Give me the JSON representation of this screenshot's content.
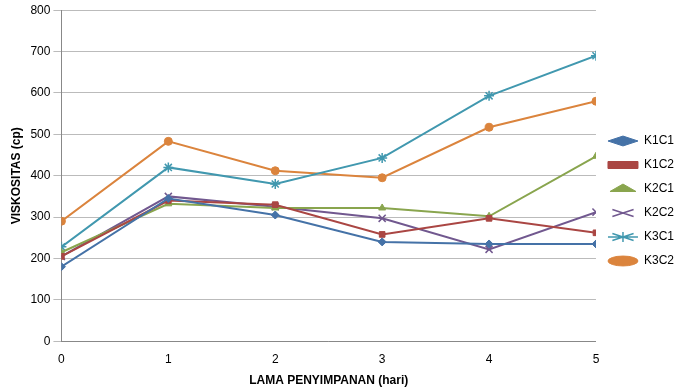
{
  "chart_data": {
    "type": "line",
    "x_label": "LAMA PENYIMPANAN (hari)",
    "y_label": "VISKOSITAS (cp)",
    "x": [
      0,
      1,
      2,
      3,
      4,
      5
    ],
    "xlim": [
      0,
      5
    ],
    "xticks": [
      0,
      1,
      2,
      3,
      4,
      5
    ],
    "ylim": [
      0,
      800
    ],
    "yticks": [
      0,
      100,
      200,
      300,
      400,
      500,
      600,
      700,
      800
    ],
    "grid": true,
    "legend": "right",
    "series": [
      {
        "name": "K1C1",
        "color": "#4572a7",
        "marker": "diamond",
        "values": [
          180,
          345,
          305,
          240,
          235,
          235
        ]
      },
      {
        "name": "K1C2",
        "color": "#aa4643",
        "marker": "square",
        "values": [
          205,
          340,
          330,
          258,
          297,
          262
        ]
      },
      {
        "name": "K2C1",
        "color": "#89a54e",
        "marker": "triangle",
        "values": [
          215,
          332,
          322,
          322,
          302,
          447
        ]
      },
      {
        "name": "K2C2",
        "color": "#71588f",
        "marker": "x",
        "values": [
          205,
          350,
          325,
          297,
          222,
          312
        ]
      },
      {
        "name": "K3C1",
        "color": "#4198af",
        "marker": "star",
        "values": [
          228,
          420,
          380,
          443,
          593,
          690
        ]
      },
      {
        "name": "K3C2",
        "color": "#db843d",
        "marker": "circle",
        "values": [
          290,
          483,
          412,
          395,
          517,
          580
        ]
      }
    ]
  }
}
